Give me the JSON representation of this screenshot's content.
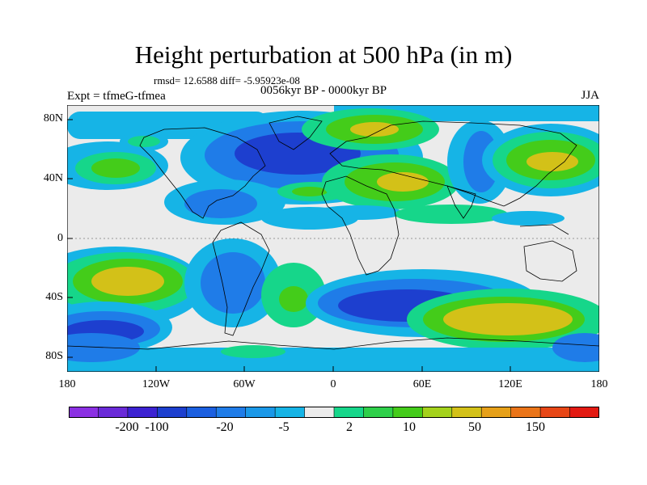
{
  "title": "Height perturbation at 500 hPa (in m)",
  "stats": "rmsd= 12.6588 diff= -5.95923e-08",
  "experiment": "Expt = tfmeG-tfmea",
  "period": "0056kyr BP - 0000kyr BP",
  "season": "JJA",
  "map": {
    "projection": "cylindrical equidistant",
    "lat_ticks": [
      "80N",
      "40N",
      "0",
      "40S",
      "80S"
    ],
    "lon_ticks": [
      "180",
      "120W",
      "60W",
      "0",
      "60E",
      "120E",
      "180"
    ],
    "field_colors": {
      "neg_strong": "#1d3fcf",
      "neg_mid": "#1f7ce8",
      "neg_weak": "#16b4e6",
      "neutral": "#ebebeb",
      "pos_weak": "#16d68a",
      "pos_mid": "#44cc1a",
      "pos_strong": "#d3c118"
    }
  },
  "colorbar": {
    "colors": [
      "#8b30e3",
      "#6a2ad8",
      "#3c22d2",
      "#1d3fcf",
      "#1b5fe0",
      "#1f7ce8",
      "#1a98e8",
      "#16b4e6",
      "#ebebeb",
      "#16d68a",
      "#2ed04a",
      "#44cc1a",
      "#a4d21c",
      "#d3c118",
      "#e6a019",
      "#ea7418",
      "#e74616",
      "#e31a12"
    ],
    "labels": [
      "-200",
      "-100",
      "-20",
      "-5",
      "2",
      "10",
      "50",
      "150"
    ]
  }
}
